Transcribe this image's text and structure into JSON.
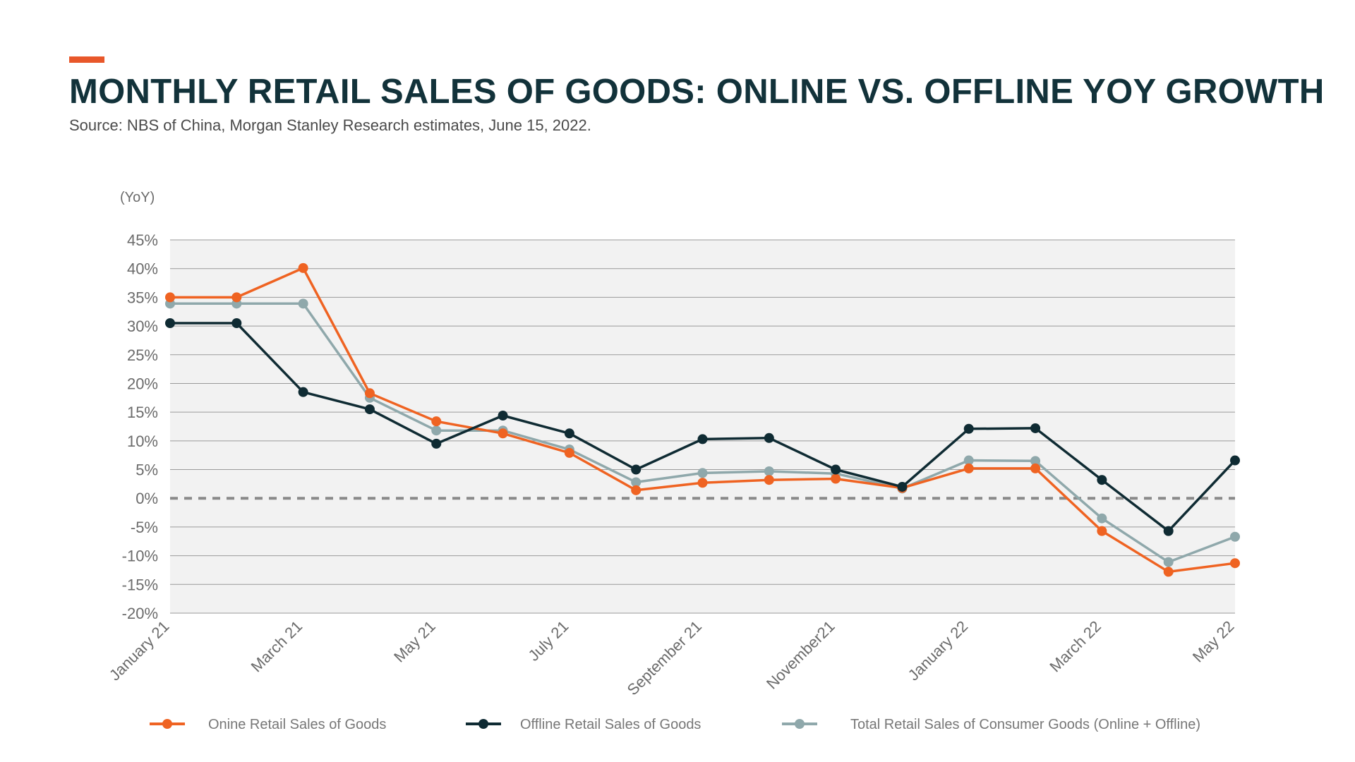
{
  "header": {
    "title": "MONTHLY RETAIL SALES OF GOODS: ONLINE VS. OFFLINE YOY GROWTH",
    "source": "Source: NBS of China, Morgan Stanley Research estimates, June 15, 2022."
  },
  "colors": {
    "accent": "#e8572a",
    "title": "#12323a",
    "online": "#ef6322",
    "offline": "#0f2b33",
    "total": "#8fa8ab",
    "plot_bg": "#f2f2f2",
    "gridline": "#9a9a9a",
    "zero_line": "#8a8a8a"
  },
  "chart_data": {
    "type": "line",
    "ylabel": "(YoY)",
    "ylim": [
      -20,
      45
    ],
    "y_ticks": [
      "45%",
      "40%",
      "35%",
      "30%",
      "25%",
      "20%",
      "15%",
      "10%",
      "5%",
      "0%",
      "-5%",
      "-10%",
      "-15%",
      "-20%"
    ],
    "x_tick_labels": [
      "January 21",
      "March 21",
      "May 21",
      "July 21",
      "September 21",
      "November21",
      "January 22",
      "March 22",
      "May 22"
    ],
    "zero_line": "dashed",
    "grid": true,
    "legend_position": "bottom",
    "series": [
      {
        "name": "Onine Retail Sales of Goods",
        "color_key": "online",
        "values": [
          35.0,
          35.0,
          40.1,
          18.3,
          13.4,
          11.3,
          7.9,
          1.4,
          2.7,
          3.2,
          3.4,
          1.8,
          5.2,
          5.2,
          -5.7,
          -12.8,
          -11.3
        ]
      },
      {
        "name": "Offline Retail Sales of Goods",
        "color_key": "offline",
        "values": [
          30.5,
          30.5,
          18.5,
          15.5,
          9.5,
          14.4,
          11.3,
          5.0,
          10.3,
          10.5,
          5.0,
          2.0,
          12.1,
          12.2,
          3.2,
          -5.7,
          6.6
        ]
      },
      {
        "name": "Total Retail Sales of Consumer Goods (Online + Offline)",
        "color_key": "total",
        "values": [
          33.9,
          33.9,
          33.9,
          17.5,
          11.8,
          11.8,
          8.5,
          2.8,
          4.4,
          4.7,
          4.3,
          1.7,
          6.6,
          6.5,
          -3.5,
          -11.1,
          -6.7
        ]
      }
    ]
  }
}
